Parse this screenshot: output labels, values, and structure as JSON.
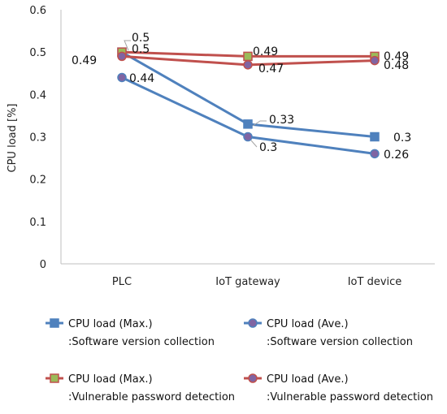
{
  "chart_data": {
    "type": "line",
    "title": "",
    "xlabel": "",
    "ylabel": "CPU load [%]",
    "ylim": [
      0,
      0.6
    ],
    "yticks": [
      "0",
      "0.1",
      "0.2",
      "0.3",
      "0.4",
      "0.5",
      "0.6"
    ],
    "categories": [
      "PLC",
      "IoT gateway",
      "IoT device"
    ],
    "grid": false,
    "legend_position": "bottom",
    "series": [
      {
        "name": "CPU load (Max.)",
        "subname": ":Software version collection",
        "values": [
          0.5,
          0.33,
          0.3
        ],
        "labels": [
          "0.5",
          "0.33",
          "0.3"
        ],
        "color": "#4f81bd",
        "marker": "square",
        "marker_fill": "#4f81bd"
      },
      {
        "name": "CPU load (Ave.)",
        "subname": ":Software version collection",
        "values": [
          0.44,
          0.3,
          0.26
        ],
        "labels": [
          "0.44",
          "0.3",
          "0.26"
        ],
        "color": "#4f81bd",
        "marker": "circle",
        "marker_fill": "#8064a2"
      },
      {
        "name": "CPU load (Max.)",
        "subname": ":Vulnerable password detection",
        "values": [
          0.5,
          0.49,
          0.49
        ],
        "labels": [
          "0.5",
          "0.49",
          "0.49"
        ],
        "color": "#c0504d",
        "marker": "square",
        "marker_fill": "#9bbb59"
      },
      {
        "name": "CPU load (Ave.)",
        "subname": ":Vulnerable password detection",
        "values": [
          0.49,
          0.47,
          0.48
        ],
        "labels": [
          "0.49",
          "0.47",
          "0.48"
        ],
        "color": "#c0504d",
        "marker": "circle",
        "marker_fill": "#8064a2"
      }
    ]
  }
}
